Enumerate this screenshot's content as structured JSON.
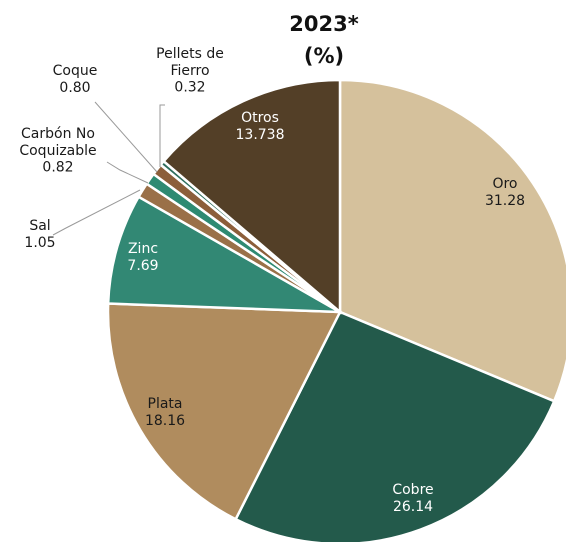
{
  "chart_data": {
    "type": "pie",
    "title": "2023*",
    "subtitle": "(%)",
    "slices": [
      {
        "label": "Oro",
        "value": 31.28,
        "value_text": "31.28",
        "color": "#d5c19c",
        "text_color": "#1a1a1a"
      },
      {
        "label": "Cobre",
        "value": 26.14,
        "value_text": "26.14",
        "color": "#235a4b",
        "text_color": "#ffffff"
      },
      {
        "label": "Plata",
        "value": 18.16,
        "value_text": "18.16",
        "color": "#b08c5e",
        "text_color": "#1a1a1a"
      },
      {
        "label": "Zinc",
        "value": 7.69,
        "value_text": "7.69",
        "color": "#328874",
        "text_color": "#ffffff"
      },
      {
        "label": "Sal",
        "value": 1.05,
        "value_text": "1.05",
        "color": "#9a7048",
        "text_color": "#1a1a1a"
      },
      {
        "label": "Carbón No Coquizable",
        "label_lines": [
          "Carbón No",
          "Coquizable"
        ],
        "value": 0.82,
        "value_text": "0.82",
        "color": "#2e8a72",
        "text_color": "#1a1a1a"
      },
      {
        "label": "Coque",
        "value": 0.8,
        "value_text": "0.80",
        "color": "#8c5e3a",
        "text_color": "#1a1a1a"
      },
      {
        "label": "Pellets de Fierro",
        "label_lines": [
          "Pellets de",
          "Fierro"
        ],
        "value": 0.32,
        "value_text": "0.32",
        "color": "#2f6e5e",
        "text_color": "#1a1a1a"
      },
      {
        "label": "Otros",
        "value": 13.738,
        "value_text": "13.738",
        "color": "#533f27",
        "text_color": "#ffffff"
      }
    ],
    "start_angle": "12 o'clock",
    "direction": "clockwise",
    "legend": "none"
  }
}
